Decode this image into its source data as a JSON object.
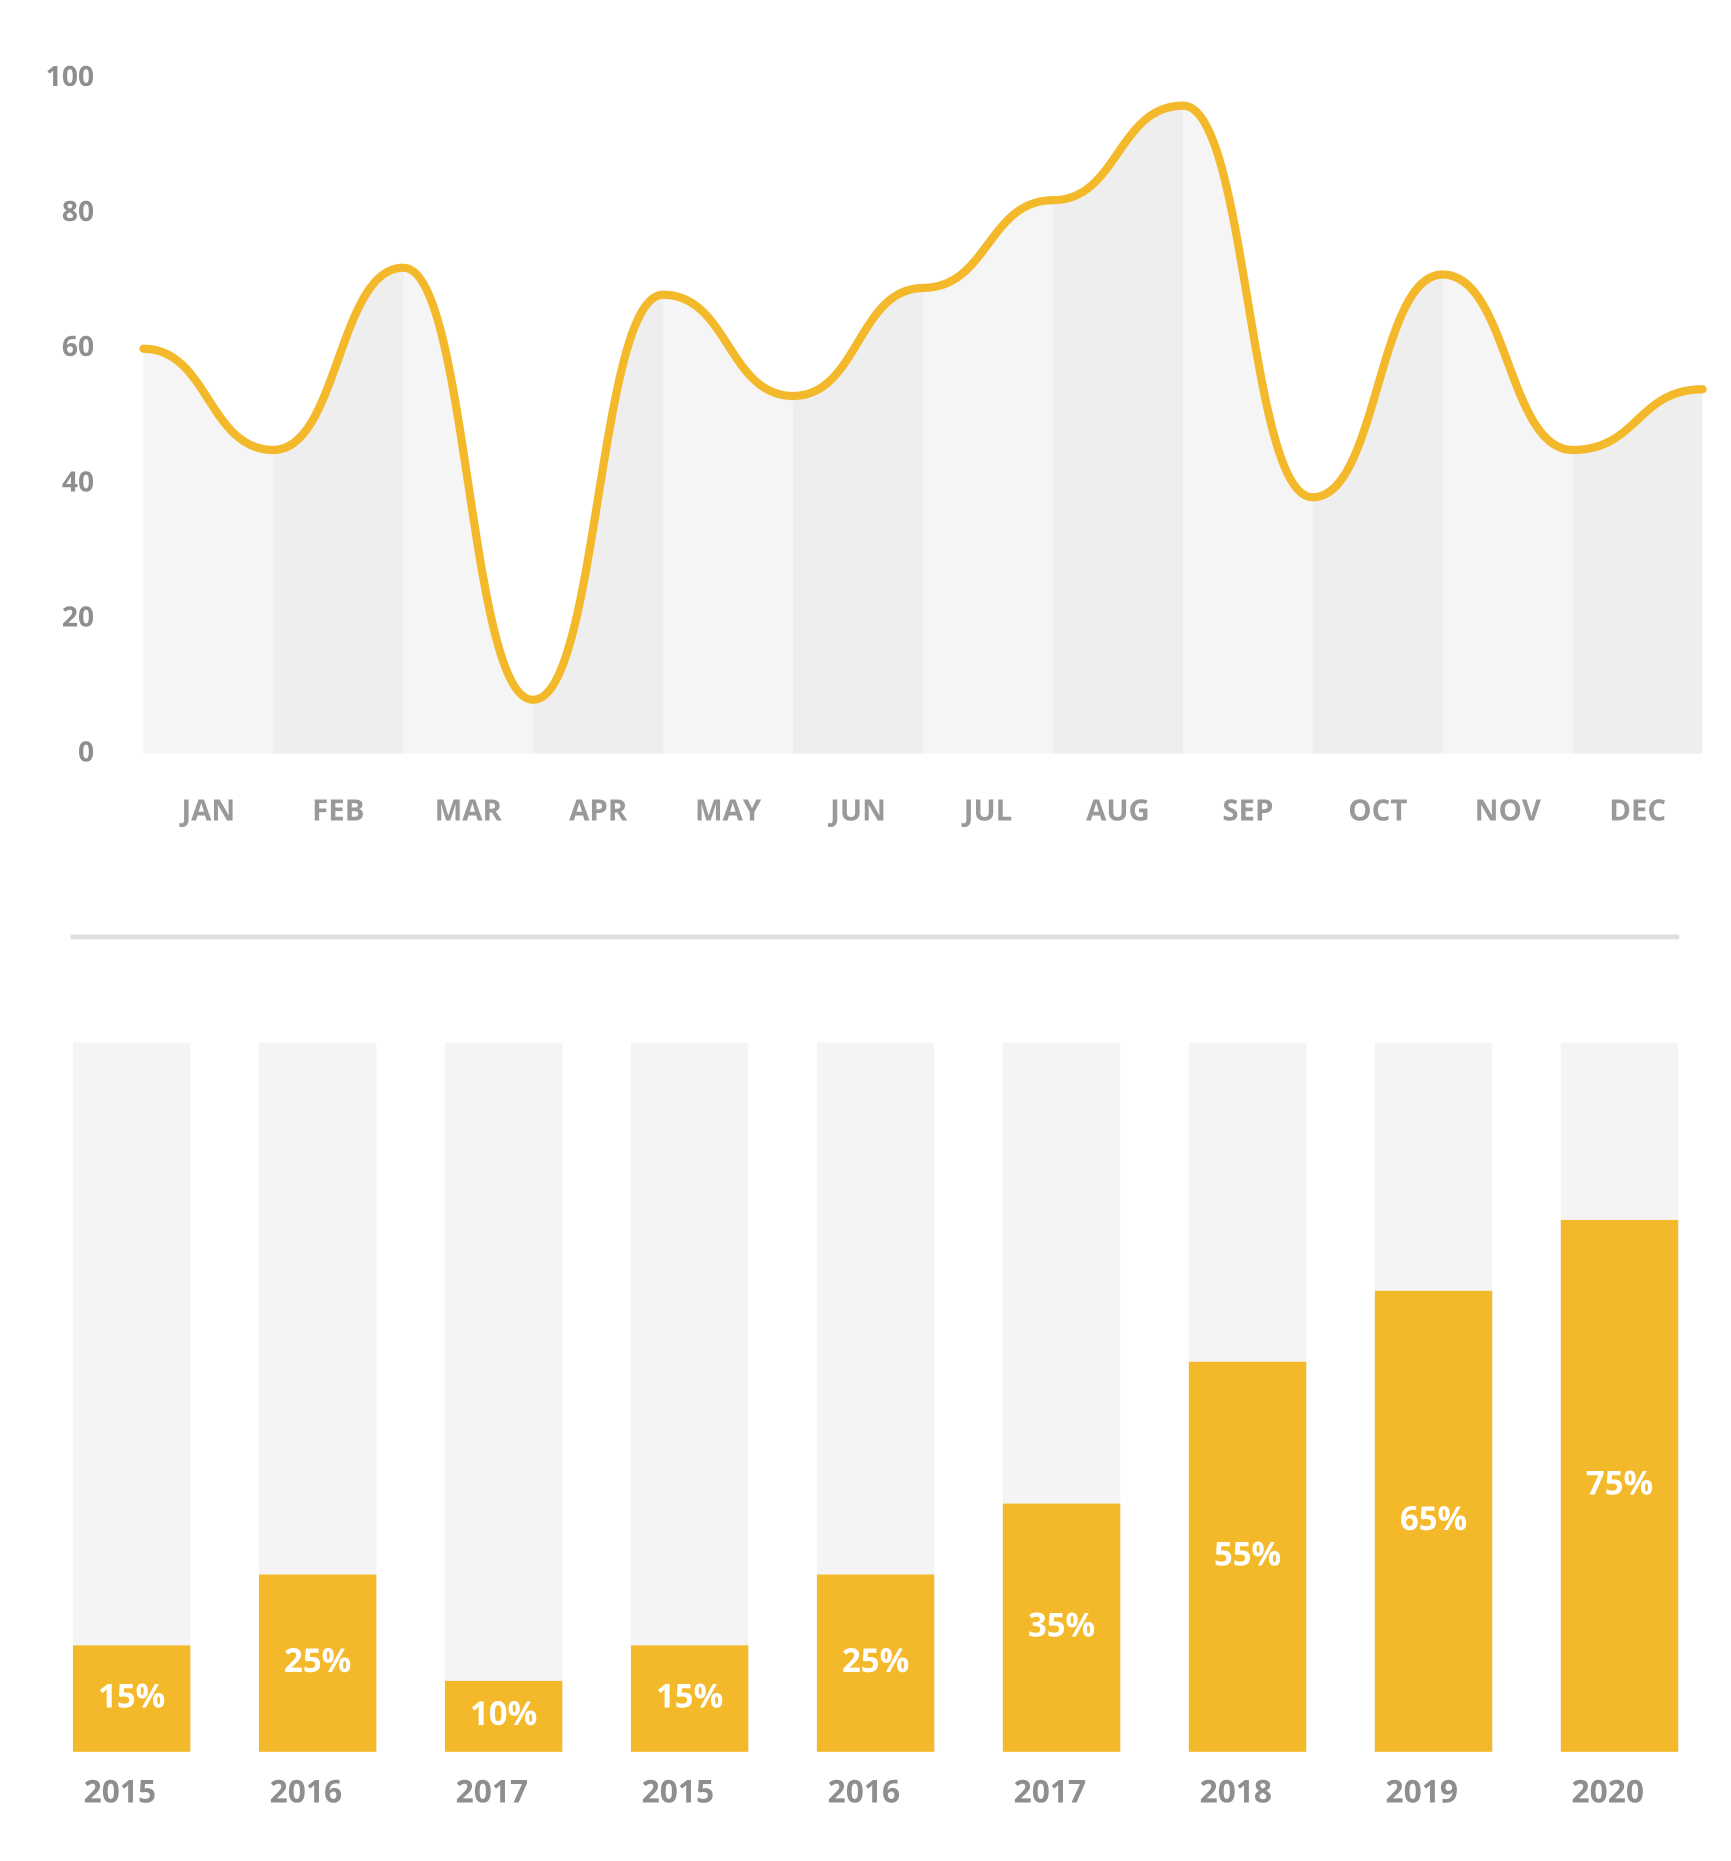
{
  "chart_data": [
    {
      "type": "line",
      "categories": [
        "JAN",
        "FEB",
        "MAR",
        "APR",
        "MAY",
        "JUN",
        "JUL",
        "AUG",
        "SEP",
        "OCT",
        "NOV",
        "DEC",
        null
      ],
      "values": [
        60,
        45,
        72,
        8,
        68,
        53,
        69,
        82,
        96,
        38,
        71,
        45,
        54
      ],
      "color": "#f4b92a",
      "ylim": [
        0,
        100
      ],
      "yticks": [
        0,
        20,
        40,
        60,
        80,
        100
      ]
    },
    {
      "type": "bar",
      "categories": [
        "2015",
        "2016",
        "2017",
        "2015",
        "2016",
        "2017",
        "2018",
        "2019",
        "2020"
      ],
      "values": [
        15,
        25,
        10,
        15,
        25,
        35,
        55,
        65,
        75
      ],
      "value_labels": [
        "15%",
        "25%",
        "10%",
        "15%",
        "25%",
        "35%",
        "55%",
        "65%",
        "75%"
      ],
      "color": "#f4b92a",
      "ylim": [
        0,
        100
      ]
    }
  ]
}
